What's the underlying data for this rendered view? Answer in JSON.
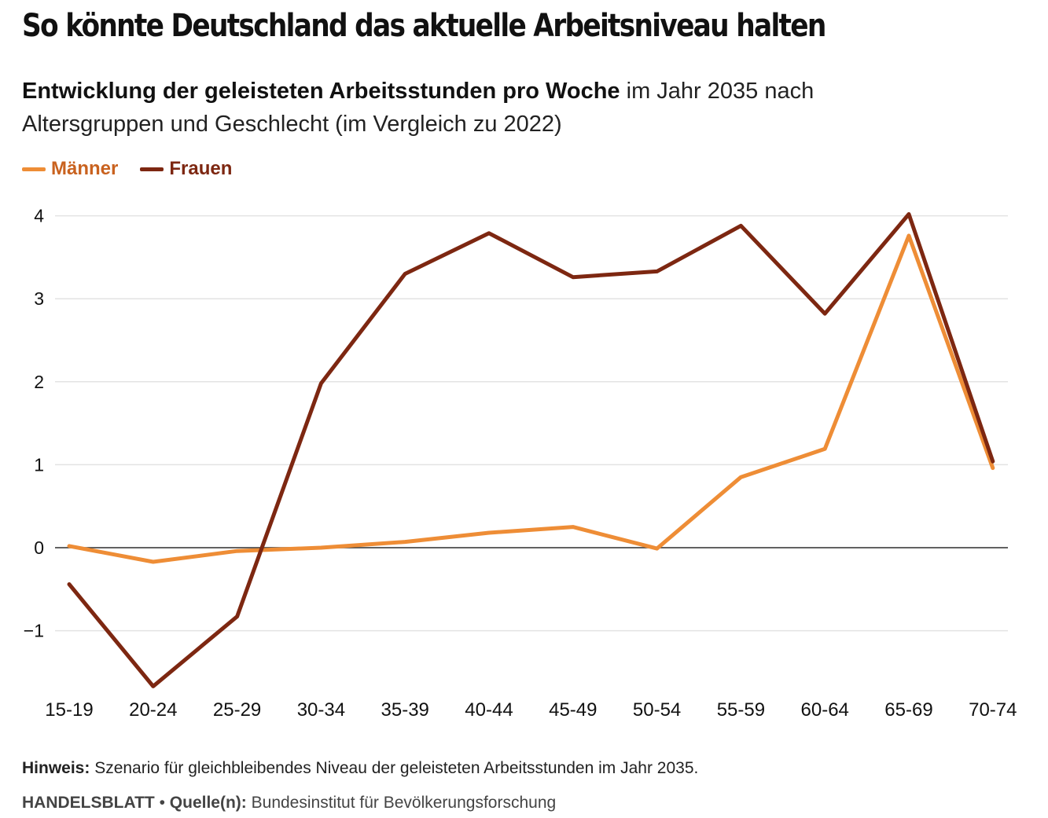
{
  "header": {
    "title": "So könnte Deutschland das aktuelle Arbeitsniveau halten",
    "subtitle_bold": "Entwicklung der geleisteten Arbeitsstunden pro Woche",
    "subtitle_rest": " im Jahr 2035 nach Altersgruppen und Geschlecht (im Vergleich zu 2022)"
  },
  "legend": {
    "items": [
      {
        "label": "Männer",
        "color": "#ee8d36",
        "text_color": "#c9621f"
      },
      {
        "label": "Frauen",
        "color": "#7d2711",
        "text_color": "#7d2711"
      }
    ]
  },
  "chart_data": {
    "type": "line",
    "x": [
      "15-19",
      "20-24",
      "25-29",
      "30-34",
      "35-39",
      "40-44",
      "45-49",
      "50-54",
      "55-59",
      "60-64",
      "65-69",
      "70-74"
    ],
    "series": [
      {
        "name": "Männer",
        "color": "#ee8d36",
        "values": [
          0.02,
          -0.17,
          -0.04,
          0.0,
          0.07,
          0.18,
          0.25,
          -0.01,
          0.85,
          1.19,
          3.76,
          0.96
        ]
      },
      {
        "name": "Frauen",
        "color": "#7d2711",
        "values": [
          -0.44,
          -1.67,
          -0.83,
          1.98,
          3.3,
          3.79,
          3.26,
          3.33,
          3.88,
          2.82,
          4.02,
          1.04
        ]
      }
    ],
    "yticks": [
      "4",
      "3",
      "2",
      "1",
      "0",
      "−1"
    ],
    "ytick_values": [
      4,
      3,
      2,
      1,
      0,
      -1
    ],
    "ylim": [
      -1.7,
      4.1
    ],
    "zero_line": true,
    "grid": true,
    "legend_position": "top-left"
  },
  "footer": {
    "note_label": "Hinweis:",
    "note_text": " Szenario für gleichbleibendes Niveau der geleisteten Arbeitsstunden im Jahr 2035.",
    "brand": "HANDELSBLATT",
    "separator": " • ",
    "source_label": "Quelle(n):",
    "source_text": " Bundesinstitut für Bevölkerungsforschung"
  }
}
